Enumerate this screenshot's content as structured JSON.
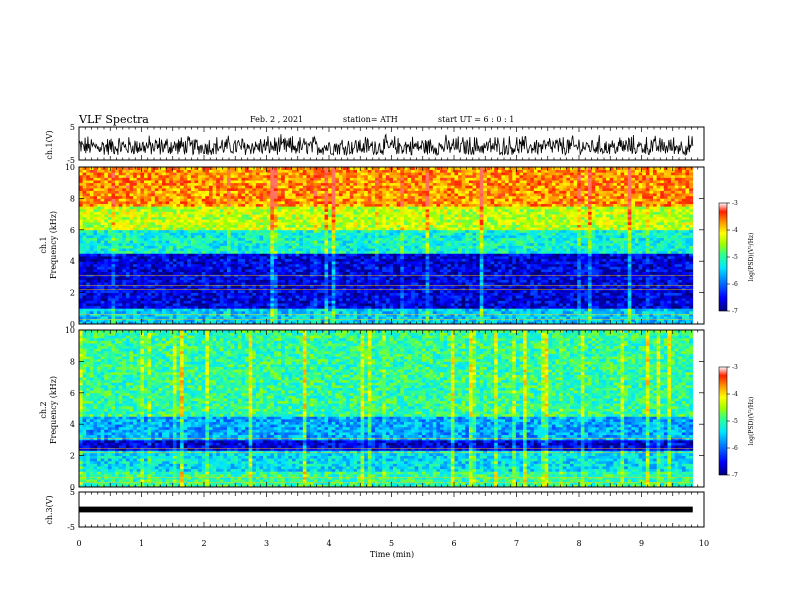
{
  "header": {
    "title": "VLF Spectra",
    "date": "Feb. 2 , 2021",
    "station": "station= ATH",
    "start_ut": "start UT = 6 : 0 : 1"
  },
  "colors": {
    "axis": "#000000",
    "background": "#ffffff",
    "colormap": [
      "#00007a",
      "#0000ff",
      "#0080ff",
      "#00e5ff",
      "#30ff90",
      "#a0ff00",
      "#ffff00",
      "#ff9900",
      "#ff2000",
      "#ffffff"
    ]
  },
  "chart_data": [
    {
      "id": "ch1-waveform",
      "type": "line",
      "ylabel": "ch.1(V)",
      "ylim": [
        -5,
        5
      ],
      "yticks": [
        "5",
        "-5"
      ],
      "xlim": [
        0,
        10
      ],
      "description_note": "",
      "series": [
        {
          "values_envelope": [
            -3.5,
            3.0
          ]
        }
      ]
    },
    {
      "id": "ch1-spectrogram",
      "type": "heatmap",
      "ylabel": "ch.1\nFrequency (kHz)",
      "ylabel_lines": [
        "ch.1",
        "Frequency (kHz)"
      ],
      "ylim": [
        0,
        10
      ],
      "yticks": [
        "0",
        "2",
        "4",
        "6",
        "8",
        "10"
      ],
      "xlim": [
        0,
        10
      ],
      "colorbar": {
        "label": "log(PSD)(V²/Hz)",
        "range": [
          -7,
          -3
        ],
        "ticks": [
          "-3",
          "-4",
          "-5",
          "-6",
          "-7"
        ]
      },
      "bands_log_psd": [
        {
          "f": [
            0,
            1.0
          ],
          "level": -5.5
        },
        {
          "f": [
            1.0,
            4.5
          ],
          "level": -6.6
        },
        {
          "f": [
            4.5,
            6.0
          ],
          "level": -5.2
        },
        {
          "f": [
            6.0,
            7.5
          ],
          "level": -4.4
        },
        {
          "f": [
            7.5,
            10
          ],
          "level": -3.7
        }
      ]
    },
    {
      "id": "ch2-spectrogram",
      "type": "heatmap",
      "ylabel_lines": [
        "ch.2",
        "Frequency (kHz)"
      ],
      "ylim": [
        0,
        10
      ],
      "yticks": [
        "0",
        "2",
        "4",
        "6",
        "8",
        "10"
      ],
      "xlim": [
        0,
        10
      ],
      "colorbar": {
        "label": "log(PSD)(V²/Hz)",
        "range": [
          -7,
          -3
        ],
        "ticks": [
          "-3",
          "-4",
          "-5",
          "-6",
          "-7"
        ]
      },
      "bands_log_psd": [
        {
          "f": [
            0,
            1.0
          ],
          "level": -5.0
        },
        {
          "f": [
            1.0,
            2.3
          ],
          "level": -5.4
        },
        {
          "f": [
            2.3,
            3.0
          ],
          "level": -6.6
        },
        {
          "f": [
            3.0,
            4.5
          ],
          "level": -5.7
        },
        {
          "f": [
            4.5,
            10
          ],
          "level": -5.0
        }
      ]
    },
    {
      "id": "ch3-waveform",
      "type": "line",
      "ylabel": "ch.3(V)",
      "ylim": [
        -5,
        5
      ],
      "yticks": [
        "5",
        "-5"
      ],
      "xlim": [
        0,
        10
      ],
      "series": [
        {
          "values_envelope": [
            -0.4,
            0.4
          ]
        }
      ]
    }
  ],
  "xaxis": {
    "label": "Time (min)",
    "ticks": [
      "0",
      "1",
      "2",
      "3",
      "4",
      "5",
      "6",
      "7",
      "8",
      "9",
      "10"
    ],
    "data_end": 9.82
  }
}
